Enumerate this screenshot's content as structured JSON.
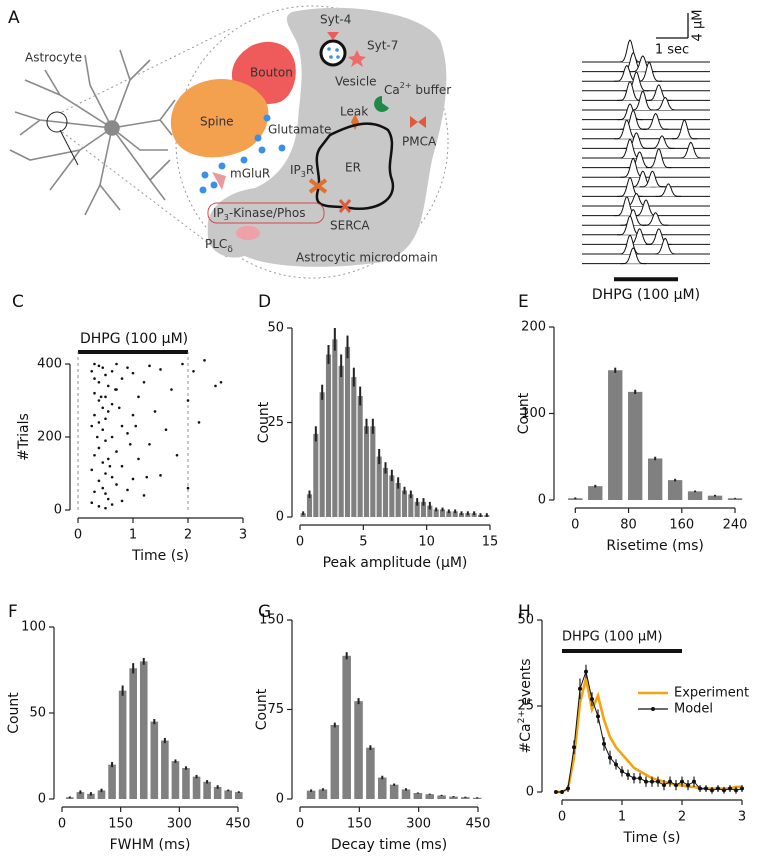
{
  "diagram": {
    "panel": "A",
    "astrocyte": "Astrocyte",
    "bouton": "Bouton",
    "spine": "Spine",
    "glutamate": "Glutamate",
    "mglur": "mGluR",
    "syt4": "Syt-4",
    "syt7": "Syt-7",
    "vesicle": "Vesicle",
    "ca_buffer": [
      "Ca",
      "2+",
      " buffer"
    ],
    "leak": "Leak",
    "pmca": "PMCA",
    "ip3r": [
      "IP",
      "3",
      "R"
    ],
    "er": "ER",
    "serca": "SERCA",
    "ip3_kinase": [
      "IP",
      "3",
      "-Kinase/Phos"
    ],
    "plc": [
      "PLC",
      "δ"
    ],
    "microdomain": "Astrocytic microdomain"
  },
  "chart_data": [
    {
      "type": "traces",
      "scale_bar": {
        "y": {
          "value": 4,
          "label": "4 μM"
        },
        "x": {
          "value": 1,
          "label": "1 sec"
        }
      },
      "stimulus": {
        "label": "DHPG (100 μM)",
        "start": 1,
        "end": 3
      },
      "traces": [
        {
          "peaks": [
            1.5
          ],
          "amplitudes": [
            3.5
          ]
        },
        {
          "peaks": [
            1.6,
            1.9
          ],
          "amplitudes": [
            3,
            2.5
          ]
        },
        {
          "peaks": [
            1.4,
            2.1
          ],
          "amplitudes": [
            2.5,
            3
          ]
        },
        {
          "peaks": [
            1.7
          ],
          "amplitudes": [
            3
          ]
        },
        {
          "peaks": [
            1.5,
            2.4
          ],
          "amplitudes": [
            3,
            2.5
          ]
        },
        {
          "peaks": [
            1.9,
            2.6
          ],
          "amplitudes": [
            3,
            2
          ]
        },
        {
          "peaks": [
            1.5
          ],
          "amplitudes": [
            2.5
          ]
        },
        {
          "peaks": [
            1.6,
            2.3
          ],
          "amplitudes": [
            3,
            2.5
          ]
        },
        {
          "peaks": [
            1.4,
            3.2
          ],
          "amplitudes": [
            3,
            3
          ]
        },
        {
          "peaks": [
            1.7,
            2.5
          ],
          "amplitudes": [
            2.5,
            2
          ]
        },
        {
          "peaks": [
            1.5,
            3.4
          ],
          "amplitudes": [
            3,
            2.5
          ]
        },
        {
          "peaks": [
            1.8,
            2.4
          ],
          "amplitudes": [
            2.5,
            3
          ]
        },
        {
          "peaks": [
            1.6
          ],
          "amplitudes": [
            3
          ]
        },
        {
          "peaks": [
            1.9,
            2.2
          ],
          "amplitudes": [
            2.5,
            2.5
          ]
        },
        {
          "peaks": [
            1.5,
            2.7
          ],
          "amplitudes": [
            3,
            2
          ]
        },
        {
          "peaks": [
            1.7
          ],
          "amplitudes": [
            2
          ]
        },
        {
          "peaks": [
            1.4,
            2.0
          ],
          "amplitudes": [
            3,
            2.5
          ]
        },
        {
          "peaks": [
            1.6,
            2.3
          ],
          "amplitudes": [
            2.5,
            2
          ]
        },
        {
          "peaks": [
            1.5
          ],
          "amplitudes": [
            3
          ]
        },
        {
          "peaks": [
            1.8,
            2.4
          ],
          "amplitudes": [
            2.5,
            2.5
          ]
        },
        {
          "peaks": [
            1.5,
            2.6
          ],
          "amplitudes": [
            3,
            2.5
          ]
        },
        {
          "peaks": [
            1.6
          ],
          "amplitudes": [
            2.5
          ]
        }
      ]
    },
    {
      "type": "raster",
      "panel": "C",
      "xlabel": "Time (s)",
      "ylabel": "#Trials",
      "stimulus": {
        "label": "DHPG (100 μM)",
        "start": 0,
        "end": 2
      },
      "xlim": [
        0,
        3
      ],
      "xticks": [
        0,
        1,
        2,
        3
      ],
      "ylim": [
        0,
        400
      ],
      "yticks": [
        0,
        200,
        400
      ],
      "x": [
        0.25,
        0.25,
        0.25,
        0.25,
        0.3,
        0.3,
        0.3,
        0.3,
        0.3,
        0.3,
        0.38,
        0.38,
        0.38,
        0.38,
        0.38,
        0.38,
        0.38,
        0.45,
        0.45,
        0.45,
        0.45,
        0.45,
        0.5,
        0.5,
        0.5,
        0.5,
        0.5,
        0.5,
        0.5,
        0.55,
        0.55,
        0.55,
        0.55,
        0.62,
        0.62,
        0.62,
        0.62,
        0.62,
        0.7,
        0.7,
        0.7,
        0.7,
        0.8,
        0.8,
        0.8,
        0.8,
        0.9,
        0.9,
        0.9,
        1.0,
        1.0,
        1.0,
        1.1,
        1.1,
        1.2,
        1.2,
        1.3,
        1.3,
        1.4,
        1.5,
        1.5,
        1.6,
        1.7,
        1.8,
        1.9,
        2.0,
        2.0,
        2.1,
        2.2,
        2.3,
        2.5,
        2.6,
        0.35,
        0.42,
        0.58,
        0.75,
        1.05,
        1.25,
        0.68,
        0.95
      ],
      "values": [
        20,
        110,
        230,
        380,
        50,
        150,
        260,
        320,
        360,
        400,
        10,
        80,
        170,
        240,
        300,
        350,
        395,
        60,
        130,
        220,
        280,
        390,
        5,
        45,
        100,
        190,
        250,
        310,
        370,
        30,
        140,
        270,
        340,
        15,
        90,
        200,
        290,
        380,
        70,
        160,
        330,
        400,
        25,
        120,
        230,
        360,
        55,
        210,
        390,
        85,
        260,
        375,
        140,
        310,
        40,
        350,
        180,
        395,
        270,
        95,
        385,
        220,
        330,
        150,
        400,
        60,
        300,
        380,
        240,
        410,
        340,
        350,
        200,
        310,
        120,
        280,
        230,
        90,
        330,
        180
      ],
      "color": "#111111"
    },
    {
      "type": "histogram",
      "panel": "D",
      "xlabel": "Peak amplitude (μM)",
      "ylabel": "Count",
      "color": "#808080",
      "xlim": [
        0,
        15
      ],
      "xticks": [
        0,
        5,
        10,
        15
      ],
      "ylim": [
        0,
        50
      ],
      "yticks": [
        0,
        25,
        50
      ],
      "bins": [
        0,
        0.5,
        1,
        1.5,
        2,
        2.5,
        3,
        3.5,
        4,
        4.5,
        5,
        5.5,
        6,
        6.5,
        7,
        7.5,
        8,
        8.5,
        9,
        9.5,
        10,
        10.5,
        11,
        11.5,
        12,
        12.5,
        13,
        13.5,
        14,
        14.5,
        15
      ],
      "values": [
        1,
        6,
        22,
        33,
        43,
        47,
        40,
        45,
        37,
        32,
        24,
        24,
        16,
        13,
        11,
        9,
        7,
        6,
        4,
        4,
        3,
        2,
        2,
        1.5,
        1.5,
        1,
        1,
        1,
        0.5,
        0.5
      ],
      "errors": [
        0.5,
        1,
        2,
        2,
        2.5,
        3,
        3,
        3,
        2.5,
        2.5,
        2,
        2,
        2,
        1.5,
        1.5,
        1.5,
        1,
        1,
        1,
        1,
        1,
        0.5,
        0.5,
        0.5,
        0.5,
        0.5,
        0.5,
        0.5,
        0.5,
        0.5
      ]
    },
    {
      "type": "bar",
      "panel": "E",
      "xlabel": "Risetime (ms)",
      "ylabel": "Count",
      "color": "#808080",
      "xlim": [
        -20,
        255
      ],
      "xticks": [
        0,
        80,
        160,
        240
      ],
      "ylim": [
        0,
        200
      ],
      "yticks": [
        0,
        100,
        200
      ],
      "x": [
        0,
        30,
        60,
        90,
        120,
        150,
        180,
        210,
        240
      ],
      "values": [
        2,
        16,
        150,
        125,
        48,
        23,
        10,
        5,
        2
      ],
      "errors": [
        1,
        1.5,
        3,
        2.5,
        2,
        1.5,
        1,
        1,
        0.5
      ]
    },
    {
      "type": "bar",
      "panel": "F",
      "xlabel": "FWHM (ms)",
      "ylabel": "Count",
      "color": "#808080",
      "xlim": [
        0,
        450
      ],
      "xticks": [
        0,
        150,
        300,
        450
      ],
      "ylim": [
        0,
        100
      ],
      "yticks": [
        0,
        50,
        100
      ],
      "x": [
        20,
        47,
        74,
        101,
        128,
        155,
        182,
        209,
        236,
        263,
        290,
        317,
        344,
        371,
        398,
        425,
        452
      ],
      "values": [
        1,
        4,
        3,
        5,
        20,
        63,
        76,
        80,
        45,
        34,
        22,
        18,
        13,
        10,
        7,
        5,
        4
      ],
      "errors": [
        0.5,
        1,
        1,
        1,
        1.5,
        3,
        3,
        2,
        1.5,
        1.5,
        1,
        1,
        1,
        1,
        1,
        0.5,
        0.5
      ]
    },
    {
      "type": "bar",
      "panel": "G",
      "xlabel": "Decay time (ms)",
      "ylabel": "Count",
      "color": "#808080",
      "xlim": [
        0,
        450
      ],
      "xticks": [
        0,
        150,
        300,
        450
      ],
      "ylim": [
        0,
        150
      ],
      "yticks": [
        0,
        75,
        150
      ],
      "x": [
        28,
        58,
        88,
        118,
        148,
        178,
        208,
        238,
        268,
        298,
        328,
        358,
        388,
        418,
        448
      ],
      "values": [
        7,
        8,
        62,
        120,
        82,
        43,
        18,
        12,
        8,
        5,
        4,
        3,
        2,
        1.5,
        1
      ],
      "errors": [
        1,
        1,
        2,
        3,
        2.5,
        2,
        1.5,
        1,
        1,
        0.5,
        0.5,
        0.5,
        0.5,
        0.5,
        0.5
      ]
    },
    {
      "type": "line",
      "panel": "H",
      "xlabel": "Time (s)",
      "ylabel": [
        "#Ca",
        "2+",
        " events"
      ],
      "stimulus": {
        "label": "DHPG (100 μM)",
        "start": 0,
        "end": 2
      },
      "legend": "right",
      "xlim": [
        -0.2,
        3
      ],
      "xticks": [
        0,
        1,
        2,
        3
      ],
      "ylim": [
        0,
        50
      ],
      "yticks": [
        0,
        25,
        50
      ],
      "x": [
        -0.1,
        0,
        0.1,
        0.2,
        0.3,
        0.4,
        0.5,
        0.6,
        0.7,
        0.8,
        0.9,
        1.0,
        1.1,
        1.2,
        1.3,
        1.4,
        1.5,
        1.6,
        1.7,
        1.8,
        1.9,
        2.0,
        2.1,
        2.2,
        2.3,
        2.4,
        2.5,
        2.6,
        2.7,
        2.8,
        2.9,
        3.0
      ],
      "series": [
        {
          "name": "Experiment",
          "color": "#f5a30f",
          "values": [
            0,
            0,
            1,
            10,
            26,
            33,
            24,
            28,
            21,
            16,
            13,
            11,
            9,
            7,
            6,
            5,
            4,
            3.5,
            3,
            2.5,
            2,
            2,
            1.5,
            1.5,
            1,
            1,
            1,
            1,
            1,
            1,
            1.5,
            1.5
          ]
        },
        {
          "name": "Model",
          "color": "#111111",
          "values": [
            0,
            0,
            1,
            13,
            30,
            35,
            27,
            22,
            14,
            10,
            8,
            6,
            5,
            4,
            4,
            3,
            3,
            3,
            2,
            3,
            2,
            3,
            2,
            3,
            1,
            1,
            0.5,
            1,
            0.5,
            1,
            0.5,
            1
          ],
          "errors": [
            0.5,
            0.5,
            1,
            2,
            3,
            2,
            2,
            2,
            2,
            2,
            1.5,
            1.5,
            1.5,
            1.5,
            1.5,
            1.5,
            1.5,
            1.5,
            1.5,
            1.5,
            1.5,
            1.5,
            1.5,
            1.5,
            1,
            1,
            1,
            1,
            1,
            1,
            1,
            1
          ]
        }
      ]
    }
  ]
}
